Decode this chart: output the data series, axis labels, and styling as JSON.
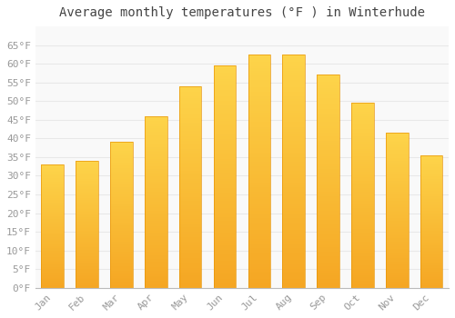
{
  "title": "Average monthly temperatures (°F ) in Winterhude",
  "months": [
    "Jan",
    "Feb",
    "Mar",
    "Apr",
    "May",
    "Jun",
    "Jul",
    "Aug",
    "Sep",
    "Oct",
    "Nov",
    "Dec"
  ],
  "values": [
    33,
    34,
    39,
    46,
    54,
    59.5,
    62.5,
    62.5,
    57,
    49.5,
    41.5,
    35.5
  ],
  "bar_color_top": "#FDD44A",
  "bar_color_bottom": "#F5A623",
  "background_color": "#FFFFFF",
  "plot_bg_color": "#F9F9F9",
  "grid_color": "#E8E8E8",
  "tick_label_color": "#999999",
  "title_color": "#444444",
  "ylim": [
    0,
    70
  ],
  "yticks": [
    0,
    5,
    10,
    15,
    20,
    25,
    30,
    35,
    40,
    45,
    50,
    55,
    60,
    65
  ],
  "ytick_labels": [
    "0°F",
    "5°F",
    "10°F",
    "15°F",
    "20°F",
    "25°F",
    "30°F",
    "35°F",
    "40°F",
    "45°F",
    "50°F",
    "55°F",
    "60°F",
    "65°F"
  ],
  "title_fontsize": 10,
  "tick_fontsize": 8,
  "figsize": [
    5.0,
    3.5
  ],
  "dpi": 100
}
